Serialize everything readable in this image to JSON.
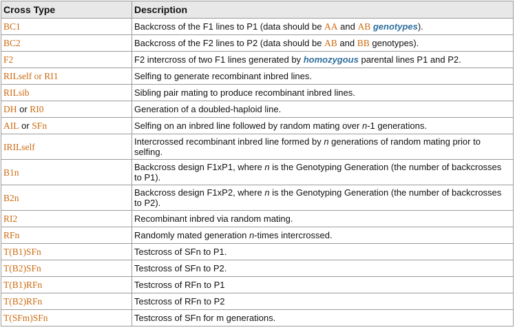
{
  "header": {
    "cross_type": "Cross Type",
    "description": "Description"
  },
  "colors": {
    "code": "#cc6a10",
    "term": "#2f6f9e"
  },
  "rows": [
    {
      "type": [
        "BC1"
      ],
      "desc": [
        {
          "t": "Backcross of the F1 lines to P1 (data should be "
        },
        {
          "t": "AA",
          "style": "code"
        },
        {
          "t": " and "
        },
        {
          "t": "AB",
          "style": "code"
        },
        {
          "t": " "
        },
        {
          "t": "genotypes",
          "style": "term"
        },
        {
          "t": ")."
        }
      ]
    },
    {
      "type": [
        "BC2"
      ],
      "desc": [
        {
          "t": "Backcross of the F2 lines to P2 (data should be "
        },
        {
          "t": "AB",
          "style": "code"
        },
        {
          "t": " and "
        },
        {
          "t": "BB",
          "style": "code"
        },
        {
          "t": " genotypes)."
        }
      ]
    },
    {
      "type": [
        "F2"
      ],
      "desc": [
        {
          "t": "F2 intercross of two F1 lines generated by "
        },
        {
          "t": "homozygous",
          "style": "term"
        },
        {
          "t": " parental lines P1 and P2."
        }
      ]
    },
    {
      "type": [
        "RILself or RI1"
      ],
      "desc": [
        {
          "t": "Selfing to generate recombinant inbred lines."
        }
      ]
    },
    {
      "type": [
        "RILsib"
      ],
      "desc": [
        {
          "t": "Sibling pair mating to produce recombinant inbred lines."
        }
      ]
    },
    {
      "type": [
        "DH",
        " or ",
        "RI0"
      ],
      "desc": [
        {
          "t": "Generation of a doubled-haploid line."
        }
      ]
    },
    {
      "type": [
        "AIL",
        " or ",
        "SFn"
      ],
      "desc": [
        {
          "t": "Selfing on an inbred line followed by random mating over "
        },
        {
          "t": "n",
          "style": "italic"
        },
        {
          "t": "-1 generations."
        }
      ]
    },
    {
      "type": [
        "IRILself"
      ],
      "tall": true,
      "desc": [
        {
          "t": "Intercrossed recombinant inbred line formed by "
        },
        {
          "t": "n",
          "style": "italic"
        },
        {
          "t": " generations of random mating prior to selfing."
        }
      ]
    },
    {
      "type": [
        "B1n"
      ],
      "tall": true,
      "desc": [
        {
          "t": "Backcross design F1xP1, where "
        },
        {
          "t": "n",
          "style": "italic"
        },
        {
          "t": " is the Genotyping Generation (the number of backcrosses to P1)."
        }
      ]
    },
    {
      "type": [
        "B2n"
      ],
      "tall": true,
      "desc": [
        {
          "t": "Backcross design F1xP2, where "
        },
        {
          "t": "n",
          "style": "italic"
        },
        {
          "t": " is the Genotyping Generation (the number of backcrosses to P2)."
        }
      ]
    },
    {
      "type": [
        "RI2"
      ],
      "desc": [
        {
          "t": "Recombinant inbred via random mating."
        }
      ]
    },
    {
      "type": [
        "RFn"
      ],
      "desc": [
        {
          "t": "Randomly mated generation "
        },
        {
          "t": "n",
          "style": "italic"
        },
        {
          "t": "-times intercrossed."
        }
      ]
    },
    {
      "type": [
        "T(B1)SFn"
      ],
      "desc": [
        {
          "t": "Testcross of SFn to P1."
        }
      ]
    },
    {
      "type": [
        "T(B2)SFn"
      ],
      "desc": [
        {
          "t": "Testcross of SFn to P2."
        }
      ]
    },
    {
      "type": [
        "T(B1)RFn"
      ],
      "desc": [
        {
          "t": "Testcross of RFn to P1"
        }
      ]
    },
    {
      "type": [
        "T(B2)RFn"
      ],
      "desc": [
        {
          "t": "Testcross of RFn to P2"
        }
      ]
    },
    {
      "type": [
        "T(SFm)SFn"
      ],
      "desc": [
        {
          "t": "Testcross of SFn for m generations."
        }
      ]
    }
  ]
}
